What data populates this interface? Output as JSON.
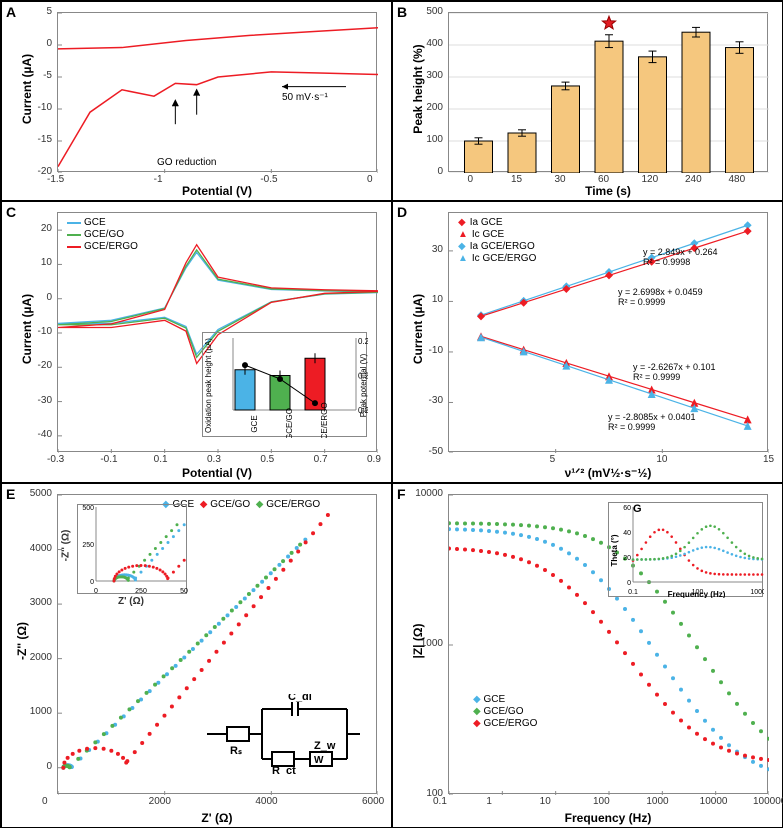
{
  "panelA": {
    "label": "A",
    "xlabel": "Potential (V)",
    "ylabel": "Current (µA)",
    "xlim": [
      -1.5,
      0.0
    ],
    "ylim": [
      -20,
      5
    ],
    "xticks": [
      -1.5,
      -1.0,
      -0.5,
      0.0
    ],
    "yticks": [
      -20,
      -15,
      -10,
      -5,
      0,
      5
    ],
    "line_color": "#ed1c24",
    "annotation1": "GO reduction",
    "annotation2": "50 mV·s⁻¹",
    "curve_top": [
      [
        0.0,
        2.7
      ],
      [
        -0.3,
        2.1
      ],
      [
        -0.6,
        1.5
      ],
      [
        -0.9,
        0.7
      ],
      [
        -1.2,
        -0.4
      ],
      [
        -1.5,
        -0.6
      ]
    ],
    "curve_bottom": [
      [
        -1.5,
        -19.0
      ],
      [
        -1.35,
        -10.5
      ],
      [
        -1.2,
        -7.0
      ],
      [
        -1.05,
        -8.0
      ],
      [
        -0.95,
        -6.0
      ],
      [
        -0.85,
        -6.2
      ],
      [
        -0.75,
        -5.0
      ],
      [
        -0.5,
        -4.2
      ],
      [
        -0.25,
        -4.4
      ],
      [
        0.0,
        -4.6
      ]
    ]
  },
  "panelB": {
    "label": "B",
    "xlabel": "Time (s)",
    "ylabel": "Peak height (%)",
    "ylim": [
      0,
      500
    ],
    "yticks": [
      0,
      100,
      200,
      300,
      400,
      500
    ],
    "categories": [
      "0",
      "15",
      "30",
      "60",
      "120",
      "240",
      "480"
    ],
    "values": [
      100,
      125,
      272,
      412,
      363,
      440,
      392
    ],
    "errors": [
      10,
      10,
      12,
      20,
      18,
      15,
      18
    ],
    "bar_color": "#f5c77e",
    "bar_border": "#000000",
    "star_index": 3,
    "star_color": "#e11b22"
  },
  "panelC": {
    "label": "C",
    "xlabel": "Potential (V)",
    "ylabel": "Current (µA)",
    "xlim": [
      -0.3,
      0.9
    ],
    "ylim": [
      -45,
      25
    ],
    "xticks": [
      -0.3,
      -0.1,
      0.1,
      0.3,
      0.5,
      0.7,
      0.9
    ],
    "yticks": [
      -40,
      -30,
      -20,
      -10,
      0,
      10,
      20
    ],
    "series": [
      {
        "name": "GCE",
        "color": "#4bb3e6"
      },
      {
        "name": "GCE/GO",
        "color": "#4fb04f"
      },
      {
        "name": "GCE/ERGO",
        "color": "#ed1c24"
      }
    ],
    "cv_xbase": [
      -0.3,
      -0.1,
      0.1,
      0.18,
      0.22,
      0.3,
      0.5,
      0.7,
      0.9
    ],
    "cv_top": [
      -8,
      -7,
      -3,
      10,
      15,
      6,
      3,
      2.5,
      2.2
    ],
    "cv_bot": [
      -8,
      -8,
      -6,
      -9,
      -18,
      -10,
      -1,
      1.5,
      2
    ],
    "scales": [
      0.9,
      0.95,
      1.05
    ],
    "inset": {
      "ylabel_left": "Oxidation peak\nheight (µA)",
      "ylabel_right": "Peak potential (V)",
      "categories": [
        "GCE",
        "GCE/GO",
        "GCE/ERGO"
      ],
      "bar_values": [
        18.5,
        18.0,
        19.5
      ],
      "bar_colors": [
        "#4bb3e6",
        "#4fb04f",
        "#ed1c24"
      ],
      "right_ticks": [
        0.205,
        0.215,
        0.225
      ],
      "line_values": [
        0.218,
        0.214,
        0.207
      ],
      "ylim_left": [
        15,
        21
      ]
    }
  },
  "panelD": {
    "label": "D",
    "xlabel": "ν¹ᐟ² (mV½·s⁻½)",
    "ylabel": "Current (µA)",
    "xlim": [
      0,
      15
    ],
    "ylim": [
      -50,
      45
    ],
    "xticks": [
      5,
      10,
      15
    ],
    "yticks": [
      -50,
      -30,
      -10,
      10,
      30
    ],
    "series": [
      {
        "name": "Ia GCE",
        "color": "#ed1c24",
        "marker": "diamond"
      },
      {
        "name": "Ic GCE",
        "color": "#ed1c24",
        "marker": "triangle"
      },
      {
        "name": "Ia GCE/ERGO",
        "color": "#4bb3e6",
        "marker": "diamond"
      },
      {
        "name": "Ic GCE/ERGO",
        "color": "#4bb3e6",
        "marker": "triangle"
      }
    ],
    "xvals": [
      1.5,
      3.5,
      5.5,
      7.5,
      9.5,
      11.5,
      14
    ],
    "eq1": "y = 2.849x + 0.264\nR² = 0.9998",
    "eq2": "y = 2.6998x + 0.0459\nR² = 0.9999",
    "eq3": "y = -2.6267x + 0.101\nR² = 0.9999",
    "eq4": "y = -2.8085x + 0.0401\nR² = 0.9999"
  },
  "panelE": {
    "label": "E",
    "xlabel": "Z' (Ω)",
    "ylabel": "-Z'' (Ω)",
    "xlim": [
      0,
      6000
    ],
    "ylim": [
      -500,
      5000
    ],
    "xticks": [
      0,
      2000,
      4000,
      6000
    ],
    "yticks": [
      0,
      1000,
      2000,
      3000,
      4000,
      5000
    ],
    "series": [
      {
        "name": "GCE",
        "color": "#4bb3e6"
      },
      {
        "name": "GCE/GO",
        "color": "#ed1c24"
      },
      {
        "name": "GCE/ERGO",
        "color": "#4fb04f"
      }
    ],
    "inset": {
      "xlabel": "Z' (Ω)",
      "ylabel": "-Z'' (Ω)",
      "xlim": [
        0,
        500
      ],
      "ylim": [
        0,
        500
      ],
      "xticks": [
        0,
        250,
        500
      ],
      "yticks": [
        0,
        250,
        500
      ]
    },
    "circuit": {
      "Rs": "Rₛ",
      "Cdl": "C_dl",
      "Rct": "R_ct",
      "Zw": "Z_w"
    }
  },
  "panelF": {
    "label": "F",
    "xlabel": "Frequency (Hz)",
    "ylabel": "|Z| (Ω)",
    "xlim": [
      0.1,
      100000
    ],
    "ylim": [
      100,
      10000
    ],
    "xticks": [
      0.1,
      1,
      10,
      100,
      1000,
      10000,
      100000
    ],
    "yticks": [
      100,
      1000,
      10000
    ],
    "series": [
      {
        "name": "GCE",
        "color": "#4bb3e6"
      },
      {
        "name": "GCE/GO",
        "color": "#4fb04f"
      },
      {
        "name": "GCE/ERGO",
        "color": "#ed1c24"
      }
    ],
    "insetG": {
      "label": "G",
      "xlabel": "Frequency (Hz)",
      "ylabel": "Theta (°)",
      "xlim": [
        0.1,
        100000
      ],
      "ylim": [
        0,
        60
      ],
      "xticks": [
        0.1,
        100,
        100000
      ],
      "yticks": [
        0,
        20,
        40,
        60
      ]
    }
  }
}
